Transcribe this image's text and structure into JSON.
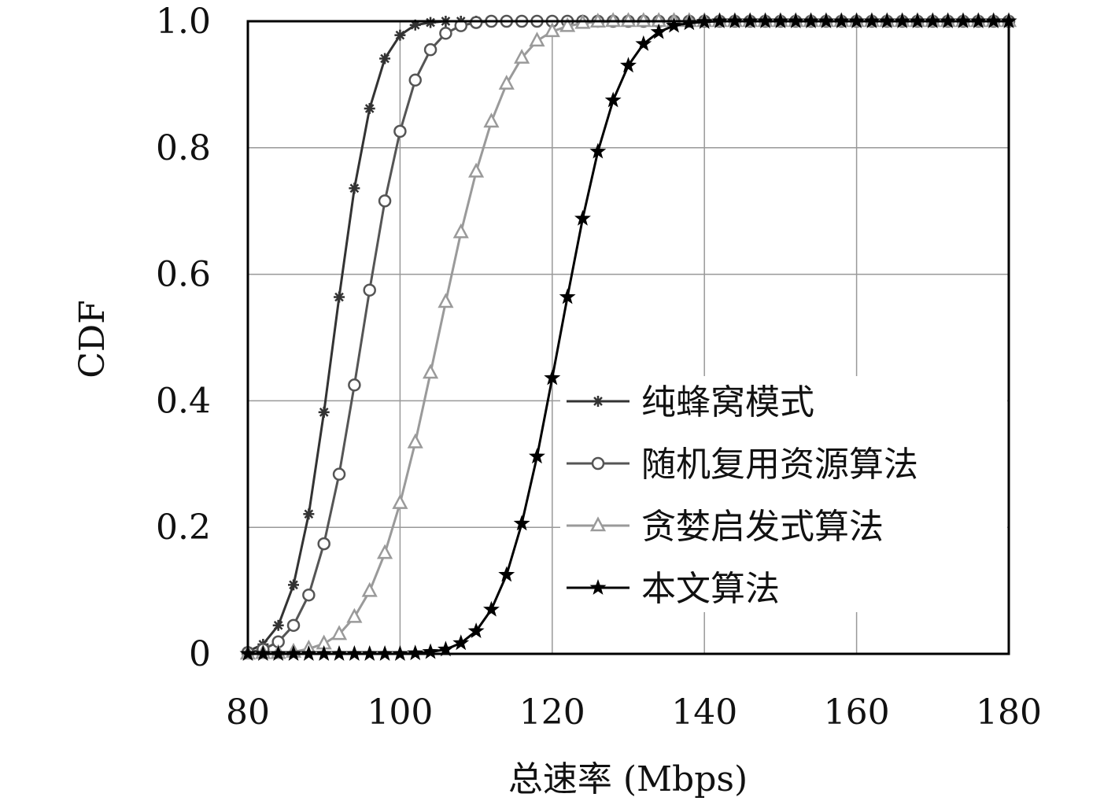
{
  "chart_data": {
    "type": "line",
    "title": "",
    "xlabel": "总速率 (Mbps)",
    "ylabel": "CDF",
    "xlim": [
      80,
      180
    ],
    "ylim": [
      0,
      1
    ],
    "xticks": [
      "80",
      "100",
      "120",
      "140",
      "160",
      "180"
    ],
    "yticks": [
      "0",
      "0.2",
      "0.4",
      "0.6",
      "0.8",
      "1.0"
    ],
    "grid": true,
    "legend_position": "center-right",
    "x": [
      80,
      82,
      84,
      86,
      88,
      90,
      92,
      94,
      96,
      98,
      100,
      102,
      104,
      106,
      108,
      110,
      112,
      114,
      116,
      118,
      120,
      122,
      124,
      126,
      128,
      130,
      132,
      134,
      136,
      138,
      140,
      142,
      144,
      146,
      148,
      150,
      152,
      154,
      156,
      158,
      160,
      162,
      164,
      166,
      168,
      170,
      172,
      174,
      176,
      178,
      180
    ],
    "series": [
      {
        "name": "纯蜂窝模式",
        "marker": "asterisk",
        "color": "#333333",
        "values": [
          0.004,
          0.015,
          0.045,
          0.109,
          0.221,
          0.382,
          0.564,
          0.736,
          0.862,
          0.941,
          0.978,
          0.994,
          0.998,
          1,
          1,
          1,
          1,
          1,
          1,
          1,
          1,
          1,
          1,
          1,
          1,
          1,
          1,
          1,
          1,
          1,
          1,
          1,
          1,
          1,
          1,
          1,
          1,
          1,
          1,
          1,
          1,
          1,
          1,
          1,
          1,
          1,
          1,
          1,
          1,
          1,
          1
        ]
      },
      {
        "name": "随机复用资源算法",
        "marker": "circle",
        "color": "#555555",
        "values": [
          0.002,
          0.007,
          0.019,
          0.045,
          0.093,
          0.174,
          0.284,
          0.425,
          0.575,
          0.716,
          0.826,
          0.907,
          0.955,
          0.981,
          0.993,
          0.998,
          1,
          1,
          1,
          1,
          1,
          1,
          1,
          1,
          1,
          1,
          1,
          1,
          1,
          1,
          1,
          1,
          1,
          1,
          1,
          1,
          1,
          1,
          1,
          1,
          1,
          1,
          1,
          1,
          1,
          1,
          1,
          1,
          1,
          1,
          1
        ]
      },
      {
        "name": "贪婪启发式算法",
        "marker": "triangle",
        "color": "#9a9a9a",
        "values": [
          0,
          0.001,
          0.001,
          0.003,
          0.008,
          0.016,
          0.031,
          0.058,
          0.099,
          0.159,
          0.238,
          0.334,
          0.444,
          0.556,
          0.666,
          0.762,
          0.841,
          0.901,
          0.942,
          0.969,
          0.984,
          0.992,
          0.997,
          0.999,
          1,
          1,
          1,
          1,
          1,
          1,
          1,
          1,
          1,
          1,
          1,
          1,
          1,
          1,
          1,
          1,
          1,
          1,
          1,
          1,
          1,
          1,
          1,
          1,
          1,
          1,
          1
        ]
      },
      {
        "name": "本文算法",
        "marker": "star",
        "color": "#000000",
        "values": [
          0,
          0,
          0,
          0,
          0,
          0,
          0,
          0,
          0,
          0,
          0,
          0.001,
          0.003,
          0.007,
          0.017,
          0.036,
          0.07,
          0.125,
          0.206,
          0.312,
          0.436,
          0.564,
          0.688,
          0.794,
          0.875,
          0.93,
          0.964,
          0.983,
          0.993,
          0.997,
          0.999,
          1,
          1,
          1,
          1,
          1,
          1,
          1,
          1,
          1,
          1,
          1,
          1,
          1,
          1,
          1,
          1,
          1,
          1,
          1,
          1
        ]
      }
    ]
  }
}
